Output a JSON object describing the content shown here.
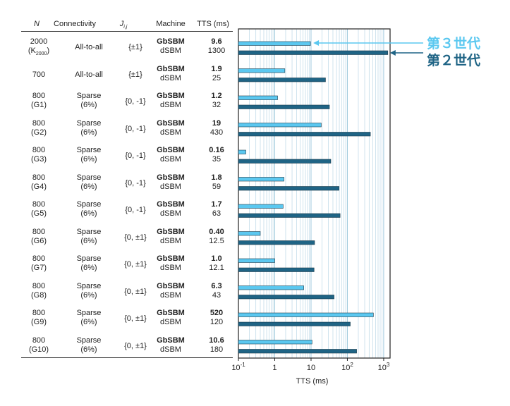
{
  "headers": {
    "n": "N",
    "connectivity": "Connectivity",
    "j": "J",
    "j_sub": "i,j",
    "machine": "Machine",
    "tts": "TTS (ms)"
  },
  "rows": [
    {
      "n": "2000",
      "n_sub_prefix": "(K",
      "n_sub": "2000",
      "n_sub_suffix": ")",
      "conn1": "All-to-all",
      "conn2": "",
      "j": "{±1}",
      "m1": "GbSBM",
      "m2": "dSBM",
      "v1": "9.6",
      "v2": "1300"
    },
    {
      "n": "700",
      "n_sub_prefix": "",
      "n_sub": "",
      "n_sub_suffix": "",
      "conn1": "All-to-all",
      "conn2": "",
      "j": "{±1}",
      "m1": "GbSBM",
      "m2": "dSBM",
      "v1": "1.9",
      "v2": "25"
    },
    {
      "n": "800",
      "n2": "(G1)",
      "conn1": "Sparse",
      "conn2": "(6%)",
      "j": "{0, -1}",
      "m1": "GbSBM",
      "m2": "dSBM",
      "v1": "1.2",
      "v2": "32"
    },
    {
      "n": "800",
      "n2": "(G2)",
      "conn1": "Sparse",
      "conn2": "(6%)",
      "j": "{0, -1}",
      "m1": "GbSBM",
      "m2": "dSBM",
      "v1": "19",
      "v2": "430"
    },
    {
      "n": "800",
      "n2": "(G3)",
      "conn1": "Sparse",
      "conn2": "(6%)",
      "j": "{0, -1}",
      "m1": "GbSBM",
      "m2": "dSBM",
      "v1": "0.16",
      "v2": "35"
    },
    {
      "n": "800",
      "n2": "(G4)",
      "conn1": "Sparse",
      "conn2": "(6%)",
      "j": "{0, -1}",
      "m1": "GbSBM",
      "m2": "dSBM",
      "v1": "1.8",
      "v2": "59"
    },
    {
      "n": "800",
      "n2": "(G5)",
      "conn1": "Sparse",
      "conn2": "(6%)",
      "j": "{0, -1}",
      "m1": "GbSBM",
      "m2": "dSBM",
      "v1": "1.7",
      "v2": "63"
    },
    {
      "n": "800",
      "n2": "(G6)",
      "conn1": "Sparse",
      "conn2": "(6%)",
      "j": "{0, ±1}",
      "m1": "GbSBM",
      "m2": "dSBM",
      "v1": "0.40",
      "v2": "12.5"
    },
    {
      "n": "800",
      "n2": "(G7)",
      "conn1": "Sparse",
      "conn2": "(6%)",
      "j": "{0, ±1}",
      "m1": "GbSBM",
      "m2": "dSBM",
      "v1": "1.0",
      "v2": "12.1"
    },
    {
      "n": "800",
      "n2": "(G8)",
      "conn1": "Sparse",
      "conn2": "(6%)",
      "j": "{0, ±1}",
      "m1": "GbSBM",
      "m2": "dSBM",
      "v1": "6.3",
      "v2": "43"
    },
    {
      "n": "800",
      "n2": "(G9)",
      "conn1": "Sparse",
      "conn2": "(6%)",
      "j": "{0, ±1}",
      "m1": "GbSBM",
      "m2": "dSBM",
      "v1": "520",
      "v2": "120"
    },
    {
      "n": "800",
      "n2": "(G10)",
      "conn1": "Sparse",
      "conn2": "(6%)",
      "j": "{0, ±1}",
      "m1": "GbSBM",
      "m2": "dSBM",
      "v1": "10.6",
      "v2": "180"
    }
  ],
  "chart_data": {
    "type": "bar",
    "orientation": "horizontal",
    "x_scale": "log",
    "xlim": [
      0.1,
      1500
    ],
    "xlabel": "TTS (ms)",
    "ticks": [
      {
        "value": 0.1,
        "base": "10",
        "exp": "-1"
      },
      {
        "value": 1,
        "base": "1",
        "exp": ""
      },
      {
        "value": 10,
        "base": "10",
        "exp": ""
      },
      {
        "value": 100,
        "base": "10",
        "exp": "2"
      },
      {
        "value": 1000,
        "base": "10",
        "exp": "3"
      }
    ],
    "categories": [
      "2000 (K2000)",
      "700",
      "800 (G1)",
      "800 (G2)",
      "800 (G3)",
      "800 (G4)",
      "800 (G5)",
      "800 (G6)",
      "800 (G7)",
      "800 (G8)",
      "800 (G9)",
      "800 (G10)"
    ],
    "series": [
      {
        "name": "GbSBM",
        "legend": "第３世代",
        "color": "#5bc8f0",
        "values": [
          9.6,
          1.9,
          1.2,
          19,
          0.16,
          1.8,
          1.7,
          0.4,
          1.0,
          6.3,
          520,
          10.6
        ]
      },
      {
        "name": "dSBM",
        "legend": "第２世代",
        "color": "#1f6485",
        "values": [
          1300,
          25,
          32,
          430,
          35,
          59,
          63,
          12.5,
          12.1,
          43,
          120,
          180
        ]
      }
    ],
    "grid": true
  }
}
